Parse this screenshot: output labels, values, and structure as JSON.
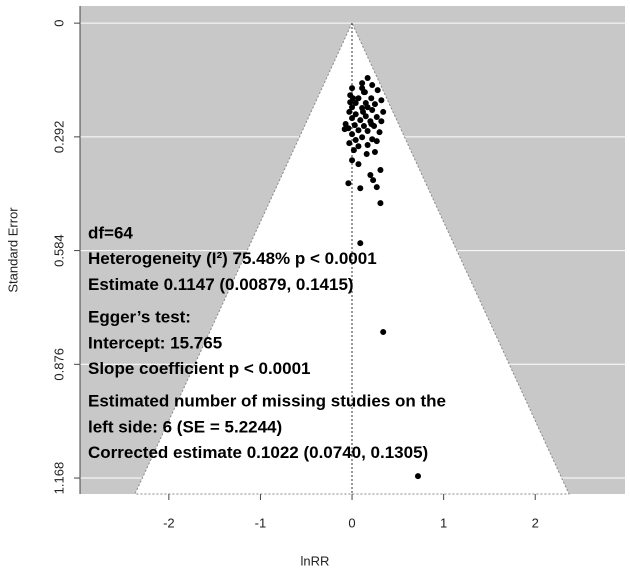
{
  "chart_data": {
    "type": "scatter",
    "x_label": "lnRR",
    "y_label": "Standard Error",
    "x": [
      0.17,
      0.22,
      0.11,
      0.0,
      0.28,
      0.13,
      0.01,
      0.07,
      0.21,
      0.32,
      -0.02,
      0.04,
      0.15,
      0.25,
      0.0,
      0.11,
      0.22,
      0.34,
      -0.03,
      0.04,
      0.15,
      0.27,
      0.0,
      0.09,
      0.2,
      -0.07,
      0.03,
      0.13,
      0.24,
      -0.04,
      0.07,
      0.17,
      0.3,
      0.0,
      0.11,
      0.22,
      -0.03,
      0.07,
      0.17,
      0.02,
      0.25,
      0.0,
      0.16,
      0.07,
      0.31,
      0.2,
      0.23,
      -0.04,
      0.27,
      0.09,
      0.31,
      0.09,
      0.34,
      0.72,
      0.14,
      0.21,
      0.04,
      -0.08,
      0.27,
      0.12,
      -0.02,
      0.11,
      0.17,
      0.32
    ],
    "values": [
      0.141,
      0.159,
      0.167,
      0.167,
      0.172,
      0.177,
      0.193,
      0.193,
      0.193,
      0.198,
      0.203,
      0.205,
      0.205,
      0.208,
      0.216,
      0.218,
      0.223,
      0.228,
      0.228,
      0.234,
      0.239,
      0.241,
      0.244,
      0.249,
      0.252,
      0.259,
      0.262,
      0.264,
      0.264,
      0.27,
      0.275,
      0.277,
      0.28,
      0.285,
      0.293,
      0.298,
      0.308,
      0.316,
      0.313,
      0.326,
      0.331,
      0.352,
      0.336,
      0.362,
      0.377,
      0.39,
      0.403,
      0.411,
      0.421,
      0.424,
      0.462,
      0.565,
      0.793,
      1.163,
      0.177,
      0.259,
      0.3,
      0.272,
      0.303,
      0.228,
      0.185,
      0.154,
      0.216,
      0.252
    ],
    "color": "#000000",
    "xlim": [
      -2.97,
      2.98
    ],
    "xticks": [
      -2,
      -1,
      0,
      1,
      2
    ],
    "ylim": [
      -0.044,
      1.209
    ],
    "y_reversed": true,
    "yticks": [
      0,
      0.292,
      0.584,
      0.876,
      1.168
    ],
    "grid": true,
    "annotations": [
      [
        "df=64",
        "Heterogeneity (I²) 75.48% p < 0.0001",
        "Estimate 0.1147 (0.00879, 0.1415)"
      ],
      [
        "Egger’s test:",
        "Intercept: 15.765",
        "Slope coefficient p < 0.0001"
      ],
      [
        "Estimated number of missing studies on the",
        "left side: 6 (SE = 5.2244)",
        "Corrected estimate 0.1022 (0.0740, 0.1305)"
      ]
    ]
  }
}
